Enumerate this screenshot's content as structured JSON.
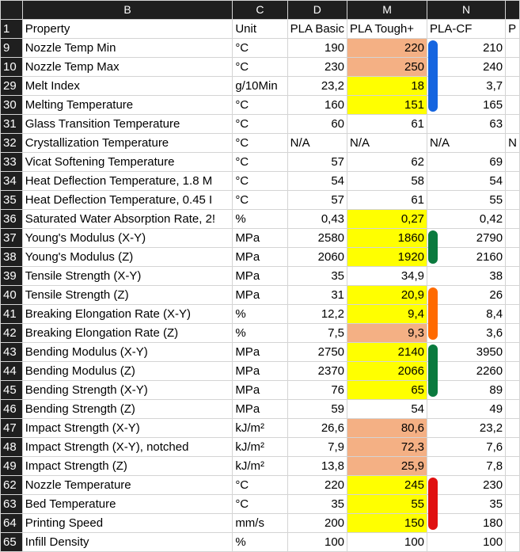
{
  "sheet": {
    "columns": [
      "B",
      "C",
      "D",
      "M",
      "N",
      ""
    ],
    "highlight_colors": {
      "yellow": "#ffff00",
      "orange": "#f4b084"
    },
    "rows": [
      {
        "n": "1",
        "cells": [
          "Property",
          "Unit",
          "PLA Basic",
          "PLA Tough+",
          "PLA-CF",
          "P"
        ],
        "hl": ""
      },
      {
        "n": "9",
        "cells": [
          "Nozzle Temp Min",
          "°C",
          "190",
          "220",
          "210",
          ""
        ],
        "hl": "orange"
      },
      {
        "n": "10",
        "cells": [
          "Nozzle Temp Max",
          "°C",
          "230",
          "250",
          "240",
          ""
        ],
        "hl": "orange"
      },
      {
        "n": "29",
        "cells": [
          "Melt Index",
          "g/10Min",
          "23,2",
          "18",
          "3,7",
          ""
        ],
        "hl": "yellow"
      },
      {
        "n": "30",
        "cells": [
          "Melting Temperature",
          "°C",
          "160",
          "151",
          "165",
          ""
        ],
        "hl": "yellow"
      },
      {
        "n": "31",
        "cells": [
          "Glass Transition Temperature",
          "°C",
          "60",
          "61",
          "63",
          ""
        ],
        "hl": ""
      },
      {
        "n": "32",
        "cells": [
          "Crystallization Temperature",
          "°C",
          "N/A",
          "N/A",
          "N/A",
          "N"
        ],
        "hl": ""
      },
      {
        "n": "33",
        "cells": [
          "Vicat Softening Temperature",
          "°C",
          "57",
          "62",
          "69",
          ""
        ],
        "hl": ""
      },
      {
        "n": "34",
        "cells": [
          "Heat Deflection Temperature, 1.8 M",
          "°C",
          "54",
          "58",
          "54",
          ""
        ],
        "hl": ""
      },
      {
        "n": "35",
        "cells": [
          "Heat Deflection Temperature, 0.45 I",
          "°C",
          "57",
          "61",
          "55",
          ""
        ],
        "hl": ""
      },
      {
        "n": "36",
        "cells": [
          "Saturated Water Absorption Rate, 2!",
          "%",
          "0,43",
          "0,27",
          "0,42",
          ""
        ],
        "hl": "yellow"
      },
      {
        "n": "37",
        "cells": [
          "Young's Modulus (X-Y)",
          "MPa",
          "2580",
          "1860",
          "2790",
          ""
        ],
        "hl": "yellow"
      },
      {
        "n": "38",
        "cells": [
          "Young's Modulus (Z)",
          "MPa",
          "2060",
          "1920",
          "2160",
          ""
        ],
        "hl": "yellow"
      },
      {
        "n": "39",
        "cells": [
          "Tensile Strength (X-Y)",
          "MPa",
          "35",
          "34,9",
          "38",
          ""
        ],
        "hl": ""
      },
      {
        "n": "40",
        "cells": [
          "Tensile Strength (Z)",
          "MPa",
          "31",
          "20,9",
          "26",
          ""
        ],
        "hl": "yellow"
      },
      {
        "n": "41",
        "cells": [
          "Breaking Elongation Rate (X-Y)",
          "%",
          "12,2",
          "9,4",
          "8,4",
          ""
        ],
        "hl": "yellow"
      },
      {
        "n": "42",
        "cells": [
          "Breaking Elongation Rate (Z)",
          "%",
          "7,5",
          "9,3",
          "3,6",
          ""
        ],
        "hl": "orange"
      },
      {
        "n": "43",
        "cells": [
          "Bending Modulus (X-Y)",
          "MPa",
          "2750",
          "2140",
          "3950",
          ""
        ],
        "hl": "yellow"
      },
      {
        "n": "44",
        "cells": [
          "Bending Modulus (Z)",
          "MPa",
          "2370",
          "2066",
          "2260",
          ""
        ],
        "hl": "yellow"
      },
      {
        "n": "45",
        "cells": [
          "Bending Strength (X-Y)",
          "MPa",
          "76",
          "65",
          "89",
          ""
        ],
        "hl": "yellow"
      },
      {
        "n": "46",
        "cells": [
          "Bending Strength (Z)",
          "MPa",
          "59",
          "54",
          "49",
          ""
        ],
        "hl": ""
      },
      {
        "n": "47",
        "cells": [
          "Impact Strength (X-Y)",
          "kJ/m²",
          "26,6",
          "80,6",
          "23,2",
          ""
        ],
        "hl": "orange"
      },
      {
        "n": "48",
        "cells": [
          "Impact Strength (X-Y), notched",
          "kJ/m²",
          "7,9",
          "72,3",
          "7,6",
          ""
        ],
        "hl": "orange"
      },
      {
        "n": "49",
        "cells": [
          "Impact Strength (Z)",
          "kJ/m²",
          "13,8",
          "25,9",
          "7,8",
          ""
        ],
        "hl": "orange"
      },
      {
        "n": "62",
        "cells": [
          "Nozzle Temperature",
          "°C",
          "220",
          "245",
          "230",
          ""
        ],
        "hl": "yellow"
      },
      {
        "n": "63",
        "cells": [
          "Bed Temperature",
          "°C",
          "35",
          "55",
          "35",
          ""
        ],
        "hl": "yellow"
      },
      {
        "n": "64",
        "cells": [
          "Printing Speed",
          "mm/s",
          "200",
          "150",
          "180",
          ""
        ],
        "hl": "yellow"
      },
      {
        "n": "65",
        "cells": [
          "Infill Density",
          "%",
          "100",
          "100",
          "100",
          ""
        ],
        "hl": ""
      }
    ],
    "markers": [
      {
        "color": "#1565e0",
        "from": "9",
        "to": "30"
      },
      {
        "color": "#0a7a3e",
        "from": "37",
        "to": "38"
      },
      {
        "color": "#ff6a00",
        "from": "40",
        "to": "42"
      },
      {
        "color": "#0a7a3e",
        "from": "43",
        "to": "45"
      },
      {
        "color": "#e01010",
        "from": "62",
        "to": "64"
      }
    ]
  }
}
